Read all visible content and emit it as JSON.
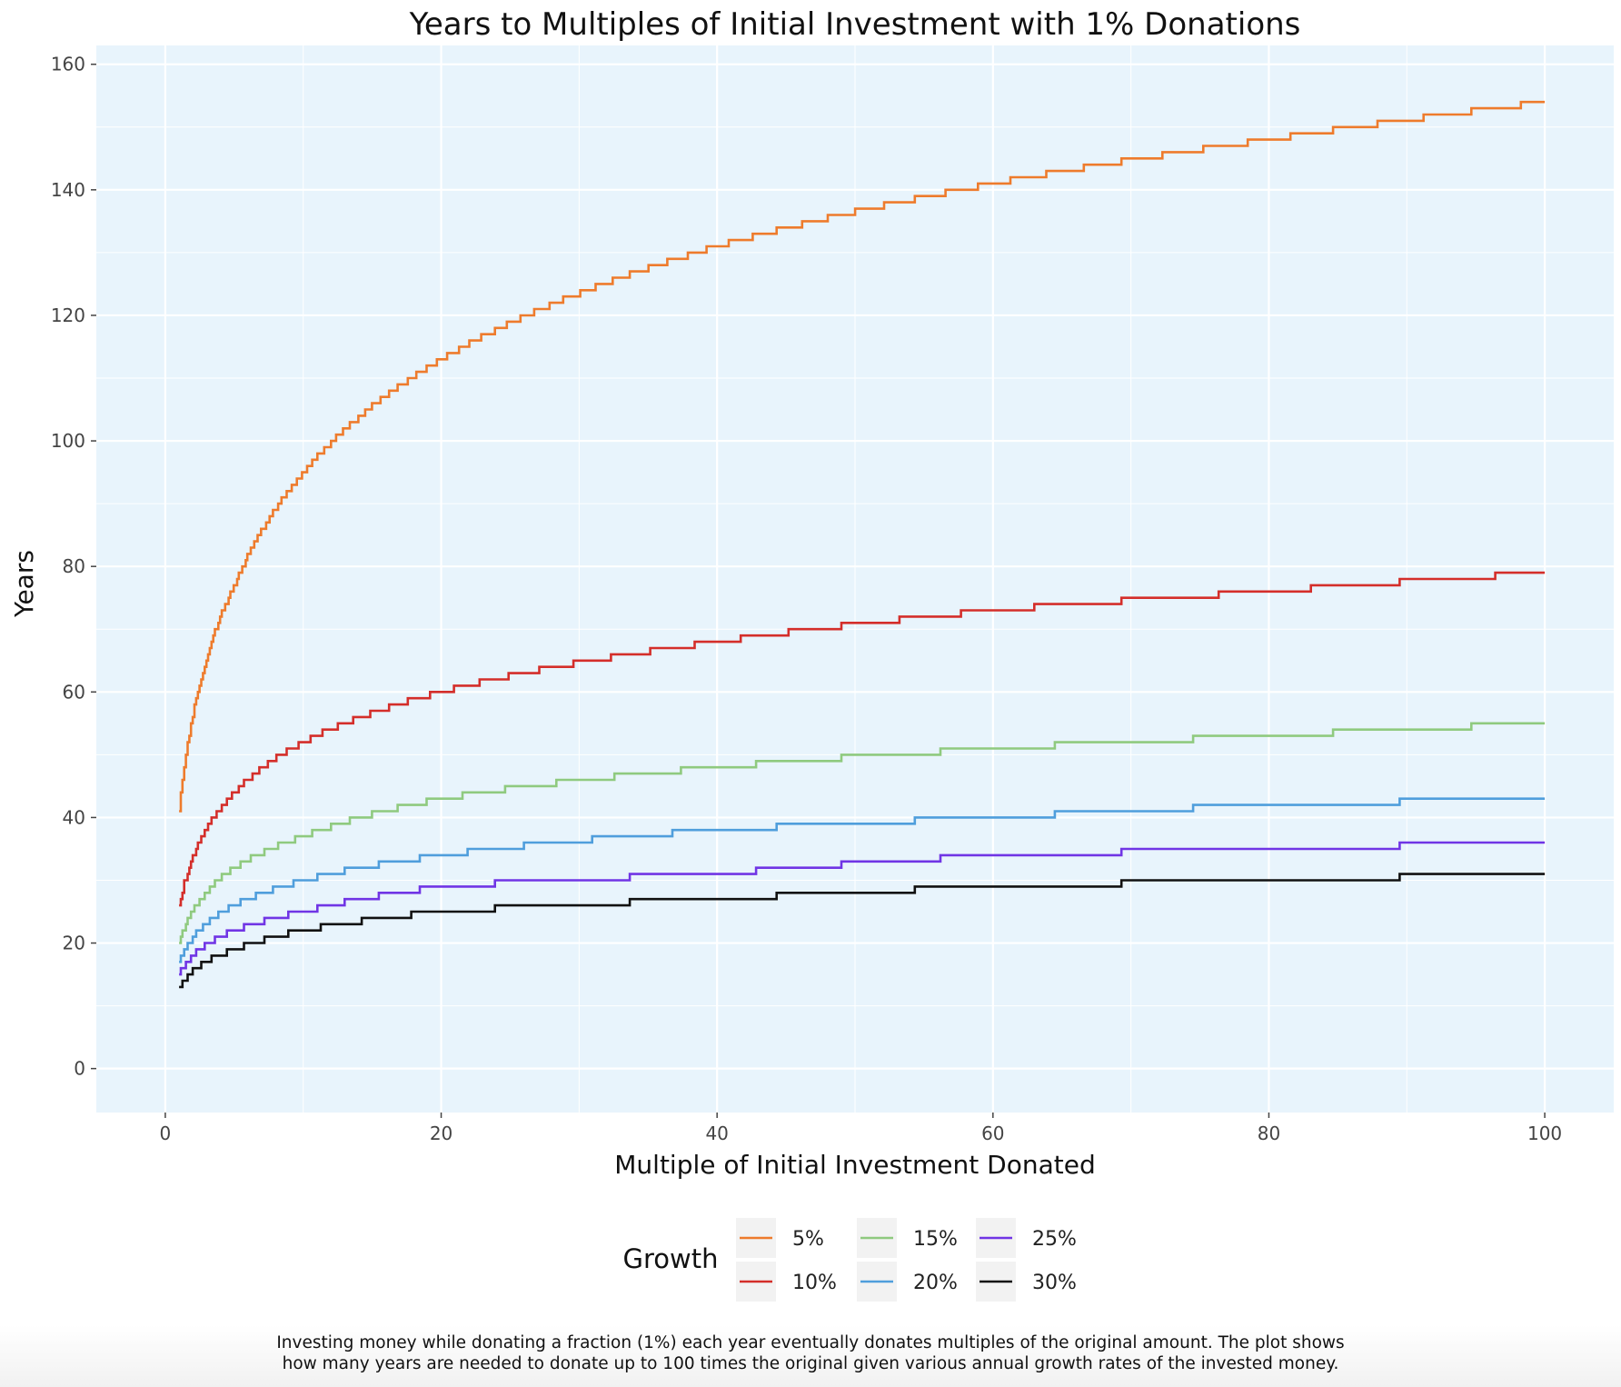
{
  "chart_data": {
    "type": "line",
    "step": true,
    "title": "Years to Multiples of Initial Investment with 1% Donations",
    "xlabel": "Multiple of Initial Investment Donated",
    "ylabel": "Years",
    "xlim": [
      -5,
      105
    ],
    "ylim": [
      -7,
      163
    ],
    "x_ticks": [
      0,
      20,
      40,
      60,
      80,
      100
    ],
    "y_ticks": [
      0,
      20,
      40,
      60,
      80,
      100,
      120,
      140,
      160
    ],
    "grid": true,
    "background": "#e8f4fc",
    "legend": {
      "title": "Growth",
      "position": "bottom"
    },
    "series": [
      {
        "name": "5%",
        "color": "#ee7b2c",
        "x": [
          1,
          5,
          10,
          20,
          40,
          60,
          80,
          100
        ],
        "y": [
          41,
          77,
          95,
          113,
          131,
          141,
          148,
          154
        ]
      },
      {
        "name": "10%",
        "color": "#d42e2a",
        "x": [
          1,
          5,
          10,
          20,
          40,
          60,
          80,
          100
        ],
        "y": [
          26,
          44,
          52,
          60,
          68,
          73,
          76,
          79
        ]
      },
      {
        "name": "15%",
        "color": "#8fca7f",
        "x": [
          1,
          5,
          10,
          20,
          40,
          60,
          80,
          100
        ],
        "y": [
          20,
          32,
          37,
          43,
          48,
          51,
          53,
          55
        ]
      },
      {
        "name": "20%",
        "color": "#4f9edc",
        "x": [
          1,
          5,
          10,
          20,
          40,
          60,
          80,
          100
        ],
        "y": [
          17,
          26,
          30,
          34,
          38,
          40,
          42,
          43
        ]
      },
      {
        "name": "25%",
        "color": "#7035e5",
        "x": [
          1,
          5,
          10,
          20,
          40,
          60,
          80,
          100
        ],
        "y": [
          15,
          22,
          25,
          29,
          31,
          34,
          35,
          36
        ]
      },
      {
        "name": "30%",
        "color": "#111111",
        "x": [
          1,
          5,
          10,
          20,
          40,
          60,
          80,
          100
        ],
        "y": [
          13,
          19,
          22,
          25,
          27,
          29,
          30,
          31
        ]
      }
    ]
  },
  "caption": {
    "line1": "Investing money while donating a fraction (1%) each year eventually donates multiples of the original amount. The plot shows",
    "line2": "how many years are needed to donate up to 100 times the original given various annual growth rates of the invested money."
  }
}
